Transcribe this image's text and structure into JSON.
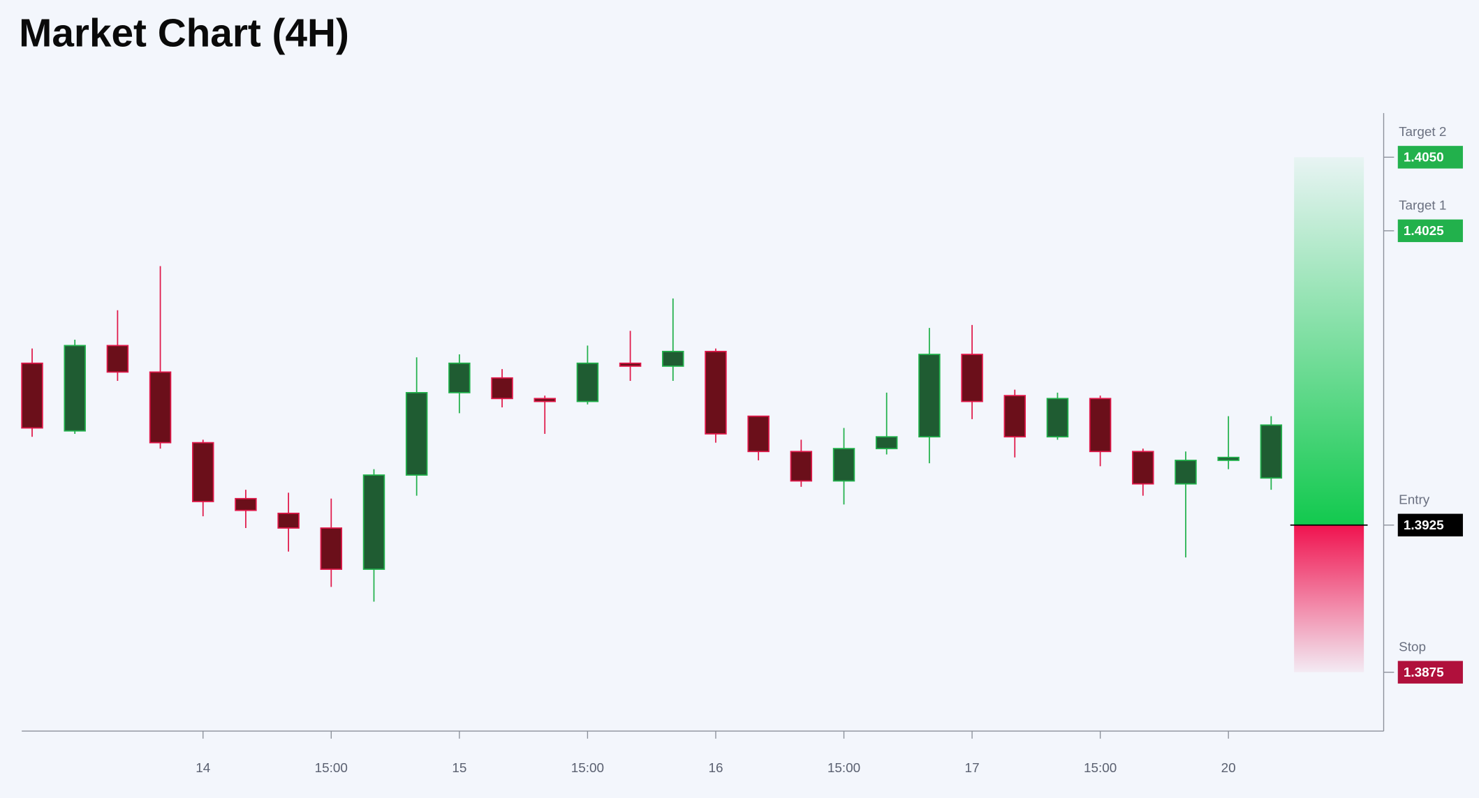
{
  "chart_data": {
    "type": "candlestick",
    "title": "Market Chart (4H)",
    "categories": [
      null,
      null,
      null,
      null,
      "14",
      null,
      null,
      "15:00",
      null,
      null,
      "15",
      null,
      null,
      "15:00",
      null,
      null,
      "16",
      null,
      null,
      "15:00",
      null,
      null,
      "17",
      null,
      null,
      "15:00",
      null,
      null,
      "20",
      null
    ],
    "open": [
      1.398,
      1.3957,
      1.3986,
      1.3977,
      1.3953,
      1.3934,
      1.3929,
      1.3924,
      1.391,
      1.3942,
      1.397,
      1.3975,
      1.3968,
      1.3967,
      1.398,
      1.3979,
      1.3984,
      1.3962,
      1.395,
      1.394,
      1.3951,
      1.3955,
      1.3983,
      1.3969,
      1.3955,
      1.3968,
      1.395,
      1.3939,
      1.3947,
      1.3941
    ],
    "high": [
      1.3985,
      1.3988,
      1.3998,
      1.4013,
      1.3954,
      1.3937,
      1.3936,
      1.3934,
      1.3944,
      1.3982,
      1.3983,
      1.3978,
      1.3969,
      1.3986,
      1.3991,
      1.4002,
      1.3985,
      1.3962,
      1.3954,
      1.3958,
      1.397,
      1.3992,
      1.3993,
      1.3971,
      1.397,
      1.3969,
      1.3951,
      1.395,
      1.3962,
      1.3962
    ],
    "low": [
      1.3955,
      1.3956,
      1.3974,
      1.3951,
      1.3928,
      1.3924,
      1.3916,
      1.3904,
      1.3899,
      1.3935,
      1.3963,
      1.3965,
      1.3956,
      1.3966,
      1.3974,
      1.3974,
      1.3953,
      1.3947,
      1.3938,
      1.3932,
      1.3949,
      1.3946,
      1.3961,
      1.3948,
      1.3954,
      1.3945,
      1.3935,
      1.3914,
      1.3944,
      1.3937
    ],
    "close": [
      1.3958,
      1.3986,
      1.3977,
      1.3953,
      1.3933,
      1.393,
      1.3924,
      1.391,
      1.3942,
      1.397,
      1.398,
      1.3968,
      1.3967,
      1.398,
      1.3979,
      1.3984,
      1.3956,
      1.395,
      1.394,
      1.3951,
      1.3955,
      1.3983,
      1.3967,
      1.3955,
      1.3968,
      1.395,
      1.3939,
      1.3947,
      1.3948,
      1.3959
    ],
    "up_color": "#22b14c",
    "down_color": "#e0194a",
    "ylim": [
      1.3855,
      1.4065
    ],
    "levels": [
      {
        "name": "Target 2",
        "value": 1.405,
        "label": "1.4050",
        "color": "#22b14c"
      },
      {
        "name": "Target 1",
        "value": 1.4025,
        "label": "1.4025",
        "color": "#22b14c"
      },
      {
        "name": "Entry",
        "value": 1.3925,
        "label": "1.3925",
        "color": "#000000"
      },
      {
        "name": "Stop",
        "value": 1.3875,
        "label": "1.3875",
        "color": "#b0103c"
      }
    ]
  }
}
